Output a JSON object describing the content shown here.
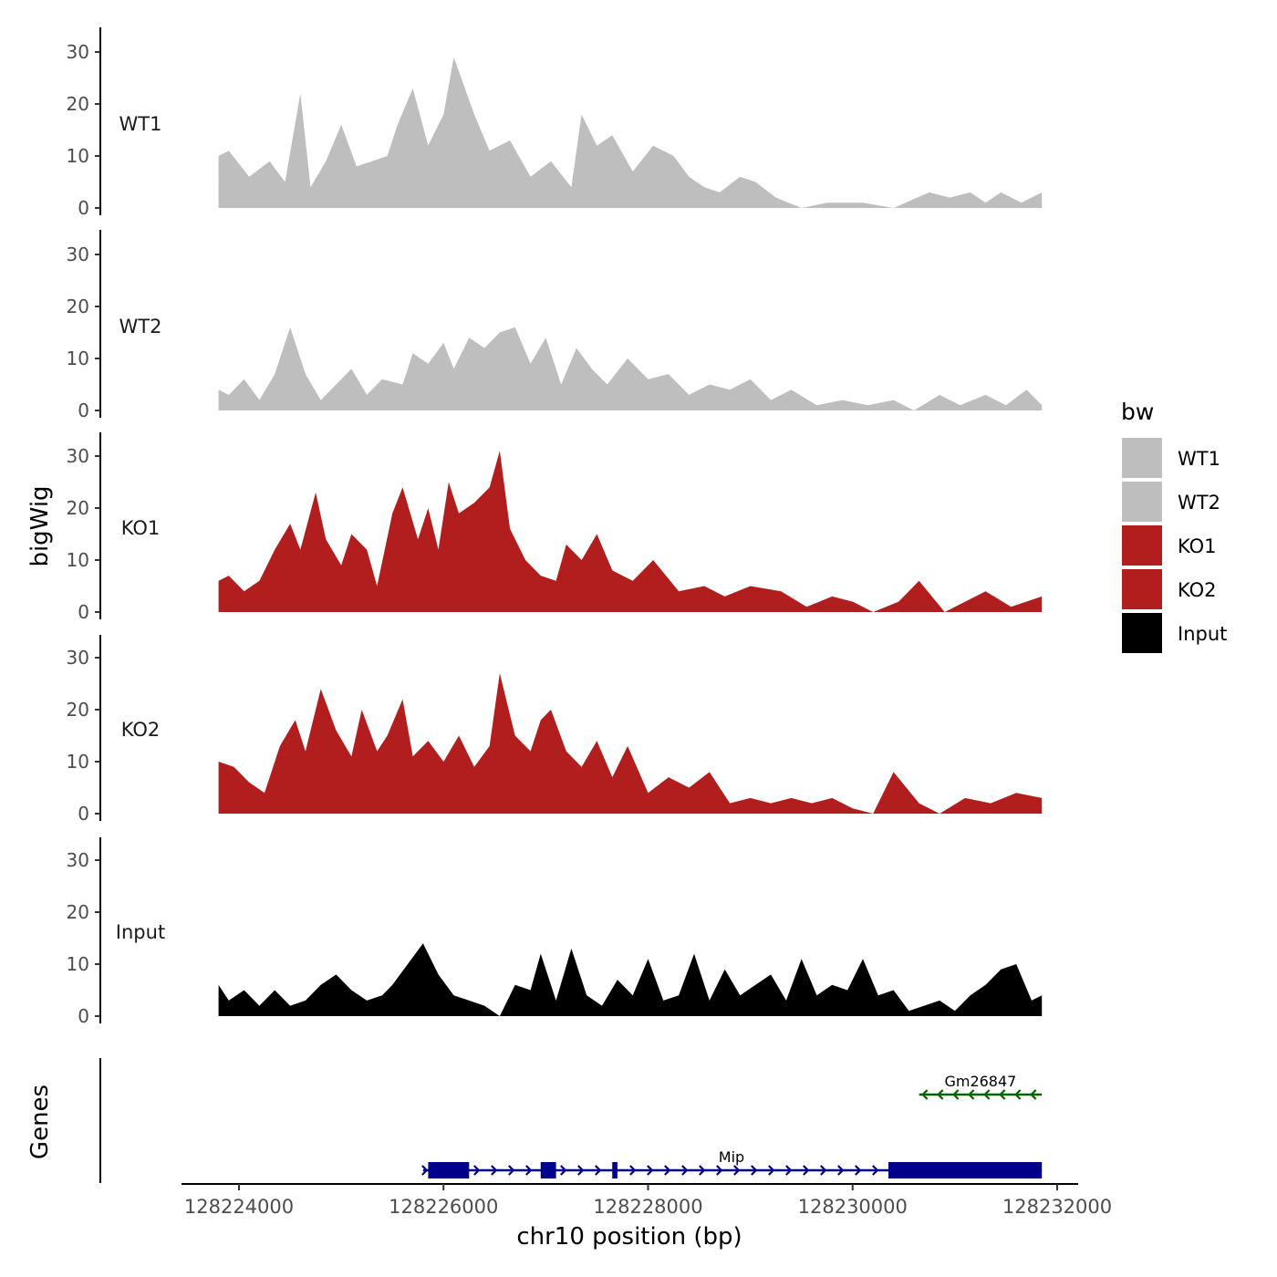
{
  "chart_data": {
    "type": "area",
    "title": "",
    "xlabel": "chr10 position (bp)",
    "ylabel": "bigWig",
    "genes_label": "Genes",
    "xlim": [
      128223400,
      128232200
    ],
    "x_ticks": [
      128224000,
      128226000,
      128228000,
      128230000,
      128232000
    ],
    "x_tick_labels": [
      "128224000",
      "128226000",
      "128228000",
      "128230000",
      "128232000"
    ],
    "y_ticks": [
      0,
      10,
      20,
      30
    ],
    "y_tick_labels": [
      "0",
      "10",
      "20",
      "30"
    ],
    "ylim": [
      0,
      35
    ],
    "legend": {
      "title": "bw",
      "entries": [
        {
          "label": "WT1",
          "color": "#bebebe"
        },
        {
          "label": "WT2",
          "color": "#bebebe"
        },
        {
          "label": "KO1",
          "color": "#b21e1e"
        },
        {
          "label": "KO2",
          "color": "#b21e1e"
        },
        {
          "label": "Input",
          "color": "#000000"
        }
      ]
    },
    "series": [
      {
        "name": "WT1",
        "color": "#bebebe",
        "x_start": 128223800,
        "x_end": 128231850,
        "x": [
          128223800,
          128223900,
          128224100,
          128224300,
          128224450,
          128224600,
          128224700,
          128224850,
          128225000,
          128225150,
          128225300,
          128225450,
          128225550,
          128225700,
          128225850,
          128226000,
          128226100,
          128226300,
          128226450,
          128226650,
          128226850,
          128227050,
          128227250,
          128227350,
          128227500,
          128227650,
          128227850,
          128228050,
          128228250,
          128228400,
          128228550,
          128228700,
          128228900,
          128229050,
          128229250,
          128229500,
          128229750,
          128230100,
          128230400,
          128230750,
          128230950,
          128231150,
          128231300,
          128231450,
          128231650,
          128231850
        ],
        "values": [
          10,
          11,
          6,
          9,
          5,
          22,
          4,
          9,
          16,
          8,
          9,
          10,
          16,
          23,
          12,
          18,
          29,
          18,
          11,
          13,
          6,
          9,
          4,
          18,
          12,
          14,
          7,
          12,
          10,
          6,
          4,
          3,
          6,
          5,
          2,
          0,
          1,
          1,
          0,
          3,
          2,
          3,
          1,
          3,
          1,
          3
        ]
      },
      {
        "name": "WT2",
        "color": "#bebebe",
        "x_start": 128223800,
        "x_end": 128231850,
        "x": [
          128223800,
          128223900,
          128224050,
          128224200,
          128224350,
          128224500,
          128224650,
          128224800,
          128224950,
          128225100,
          128225250,
          128225400,
          128225600,
          128225700,
          128225850,
          128226000,
          128226100,
          128226250,
          128226400,
          128226550,
          128226700,
          128226850,
          128227000,
          128227150,
          128227300,
          128227450,
          128227600,
          128227800,
          128228000,
          128228200,
          128228400,
          128228600,
          128228800,
          128229000,
          128229200,
          128229400,
          128229650,
          128229900,
          128230150,
          128230400,
          128230600,
          128230850,
          128231050,
          128231300,
          128231500,
          128231700,
          128231850
        ],
        "values": [
          4,
          3,
          6,
          2,
          7,
          16,
          7,
          2,
          5,
          8,
          3,
          6,
          5,
          11,
          9,
          13,
          8,
          14,
          12,
          15,
          16,
          9,
          14,
          5,
          12,
          8,
          5,
          10,
          6,
          7,
          3,
          5,
          4,
          6,
          2,
          4,
          1,
          2,
          1,
          2,
          0,
          3,
          1,
          3,
          1,
          4,
          1
        ]
      },
      {
        "name": "KO1",
        "color": "#b21e1e",
        "x_start": 128223800,
        "x_end": 128231850,
        "x": [
          128223800,
          128223900,
          128224050,
          128224200,
          128224350,
          128224500,
          128224600,
          128224750,
          128224850,
          128225000,
          128225100,
          128225250,
          128225350,
          128225500,
          128225600,
          128225750,
          128225850,
          128225950,
          128226050,
          128226150,
          128226300,
          128226450,
          128226550,
          128226650,
          128226800,
          128226950,
          128227100,
          128227200,
          128227350,
          128227500,
          128227650,
          128227850,
          128228050,
          128228300,
          128228550,
          128228750,
          128229000,
          128229300,
          128229550,
          128229800,
          128230000,
          128230200,
          128230450,
          128230650,
          128230900,
          128231100,
          128231300,
          128231550,
          128231850
        ],
        "values": [
          6,
          7,
          4,
          6,
          12,
          17,
          12,
          23,
          14,
          9,
          15,
          12,
          5,
          19,
          24,
          14,
          20,
          12,
          25,
          19,
          21,
          24,
          31,
          16,
          10,
          7,
          6,
          13,
          10,
          15,
          8,
          6,
          10,
          4,
          5,
          3,
          5,
          4,
          1,
          3,
          2,
          0,
          2,
          6,
          0,
          2,
          4,
          1,
          3
        ]
      },
      {
        "name": "KO2",
        "color": "#b21e1e",
        "x_start": 128223800,
        "x_end": 128231850,
        "x": [
          128223800,
          128223950,
          128224100,
          128224250,
          128224400,
          128224550,
          128224650,
          128224800,
          128224950,
          128225100,
          128225200,
          128225350,
          128225450,
          128225600,
          128225700,
          128225850,
          128226000,
          128226150,
          128226300,
          128226450,
          128226550,
          128226700,
          128226850,
          128226950,
          128227050,
          128227200,
          128227350,
          128227500,
          128227650,
          128227800,
          128228000,
          128228200,
          128228400,
          128228600,
          128228800,
          128229000,
          128229200,
          128229400,
          128229600,
          128229800,
          128230000,
          128230200,
          128230400,
          128230650,
          128230850,
          128231100,
          128231350,
          128231600,
          128231850
        ],
        "values": [
          10,
          9,
          6,
          4,
          13,
          18,
          12,
          24,
          16,
          11,
          20,
          12,
          15,
          22,
          11,
          14,
          10,
          15,
          9,
          13,
          27,
          15,
          12,
          18,
          20,
          12,
          9,
          14,
          7,
          13,
          4,
          7,
          5,
          8,
          2,
          3,
          2,
          3,
          2,
          3,
          1,
          0,
          8,
          2,
          0,
          3,
          2,
          4,
          3
        ]
      },
      {
        "name": "Input",
        "color": "#000000",
        "x_start": 128223800,
        "x_end": 128231850,
        "x": [
          128223800,
          128223900,
          128224050,
          128224200,
          128224350,
          128224500,
          128224650,
          128224800,
          128224950,
          128225100,
          128225250,
          128225400,
          128225500,
          128225650,
          128225800,
          128225950,
          128226100,
          128226250,
          128226400,
          128226550,
          128226700,
          128226850,
          128226950,
          128227100,
          128227250,
          128227400,
          128227550,
          128227700,
          128227850,
          128228000,
          128228150,
          128228300,
          128228450,
          128228600,
          128228750,
          128228900,
          128229050,
          128229200,
          128229350,
          128229500,
          128229650,
          128229800,
          128229950,
          128230100,
          128230250,
          128230400,
          128230550,
          128230700,
          128230850,
          128231000,
          128231150,
          128231300,
          128231450,
          128231600,
          128231750,
          128231850
        ],
        "values": [
          6,
          3,
          5,
          2,
          5,
          2,
          3,
          6,
          8,
          5,
          3,
          4,
          6,
          10,
          14,
          8,
          4,
          3,
          2,
          0,
          6,
          5,
          12,
          3,
          13,
          4,
          2,
          7,
          4,
          11,
          3,
          4,
          12,
          3,
          9,
          4,
          6,
          8,
          3,
          11,
          4,
          6,
          5,
          11,
          4,
          5,
          1,
          2,
          3,
          1,
          4,
          6,
          9,
          10,
          3,
          4
        ]
      }
    ],
    "genes": [
      {
        "name": "Mip",
        "strand": "+",
        "color": "#00008b",
        "start": 128225800,
        "end": 128231850,
        "exons": [
          [
            128225850,
            128226250
          ],
          [
            128226950,
            128227100
          ],
          [
            128227650,
            128227700
          ],
          [
            128230350,
            128231850
          ]
        ]
      },
      {
        "name": "Gm26847",
        "strand": "-",
        "color": "#006400",
        "start": 128230650,
        "end": 128231850,
        "exons": []
      }
    ]
  }
}
